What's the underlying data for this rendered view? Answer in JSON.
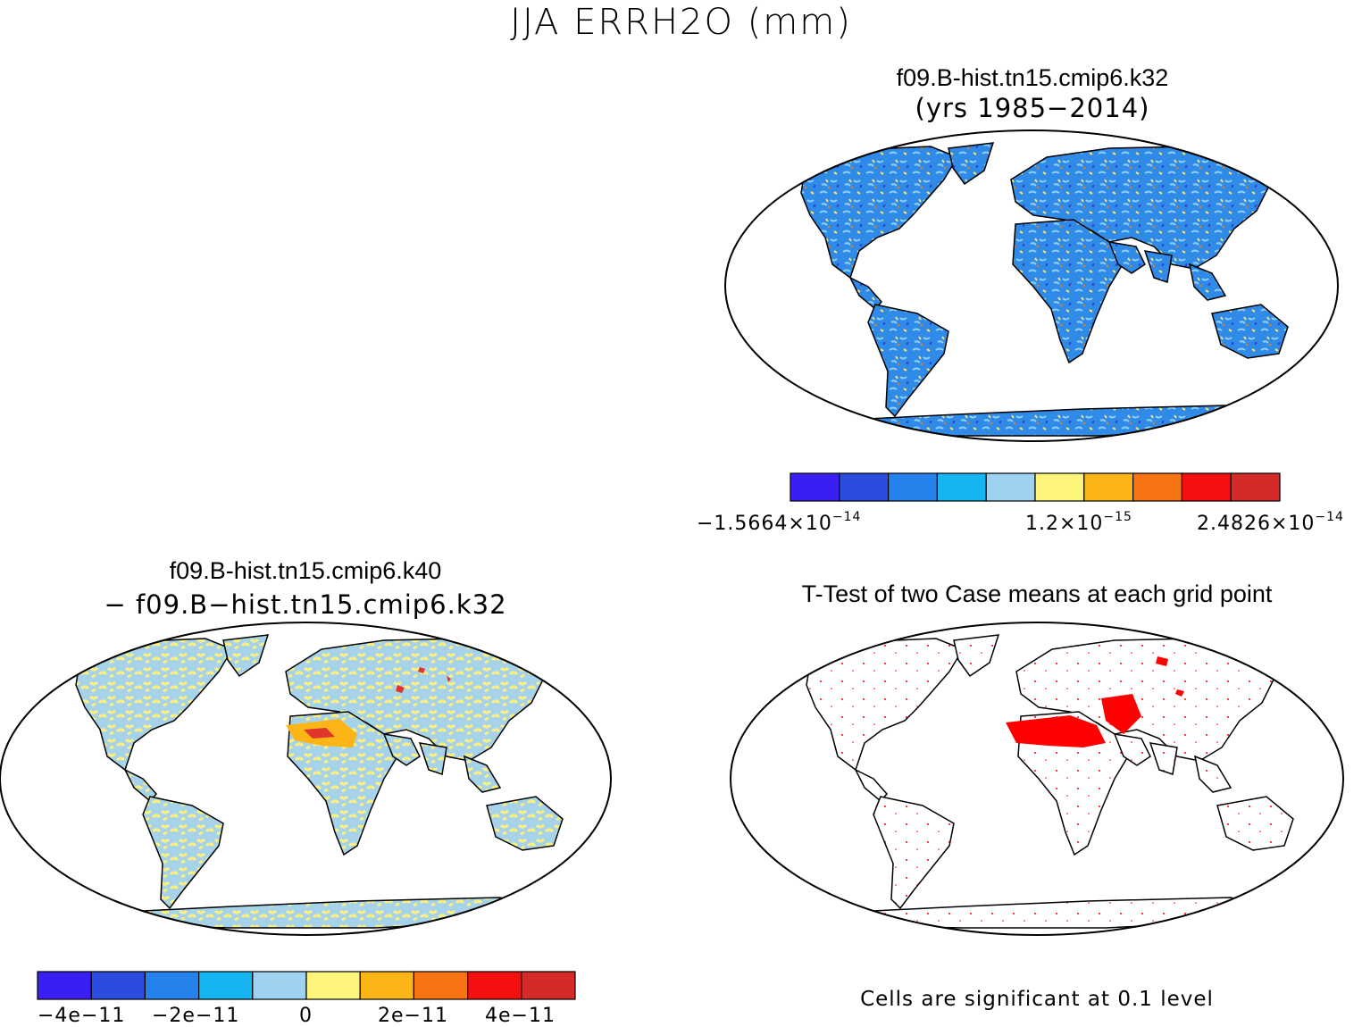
{
  "figure": {
    "title": "JJA ERRH2O (mm)"
  },
  "panels": {
    "top_right": {
      "title": "f09.B-hist.tn15.cmip6.k32",
      "subtitle": "(yrs 1985−2014)",
      "colorbar": {
        "colors": [
          "#3a1ff5",
          "#2c4ce0",
          "#2582ec",
          "#17b4f2",
          "#9fd2f0",
          "#fdf47c",
          "#fbb516",
          "#f87412",
          "#f51010",
          "#d42a2a"
        ],
        "labels": {
          "left": {
            "mantissa": "−1.5664×10",
            "exp": "−14"
          },
          "mid": {
            "mantissa": "1.2×10",
            "exp": "−15"
          },
          "right": {
            "mantissa": "2.4826×10",
            "exp": "−14"
          }
        }
      }
    },
    "bottom_left": {
      "title": "f09.B-hist.tn15.cmip6.k40",
      "subtitle": "− f09.B−hist.tn15.cmip6.k32",
      "colorbar": {
        "colors": [
          "#3a1ff5",
          "#2c4ce0",
          "#2582ec",
          "#17b4f2",
          "#9fd2f0",
          "#fdf47c",
          "#fbb516",
          "#f87412",
          "#f51010",
          "#d42a2a"
        ],
        "ticks": [
          "−4e−11",
          "−2e−11",
          "0",
          "2e−11",
          "4e−11"
        ]
      }
    },
    "bottom_right": {
      "title": "T-Test of two Case means at each grid point",
      "note": "Cells are significant at 0.1 level",
      "significance_color": "#ff0000"
    }
  }
}
